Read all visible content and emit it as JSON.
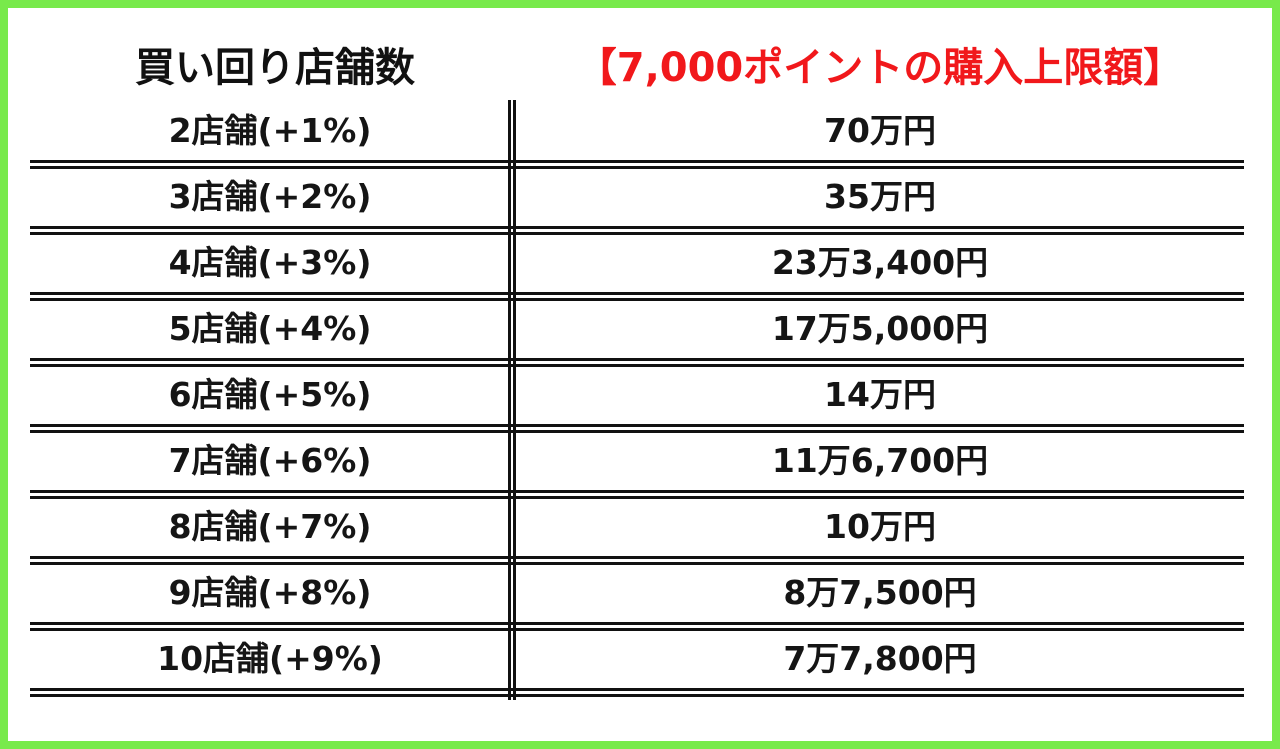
{
  "header": {
    "left_title": "買い回り店舗数",
    "right_title": "【7,000ポイントの購入上限額】"
  },
  "table": {
    "rows": [
      {
        "stores": "2店舗(+1%)",
        "limit": "70万円"
      },
      {
        "stores": "3店舗(+2%)",
        "limit": "35万円"
      },
      {
        "stores": "4店舗(+3%)",
        "limit": "23万3,400円"
      },
      {
        "stores": "5店舗(+4%)",
        "limit": "17万5,000円"
      },
      {
        "stores": "6店舗(+5%)",
        "limit": "14万円"
      },
      {
        "stores": "7店舗(+6%)",
        "limit": "11万6,700円"
      },
      {
        "stores": "8店舗(+7%)",
        "limit": "10万円"
      },
      {
        "stores": "9店舗(+8%)",
        "limit": "8万7,500円"
      },
      {
        "stores": "10店舗(+9%)",
        "limit": "7万7,800円"
      }
    ]
  },
  "colors": {
    "frame": "#78ea4b",
    "header_accent": "#f1181b",
    "text": "#151515"
  }
}
